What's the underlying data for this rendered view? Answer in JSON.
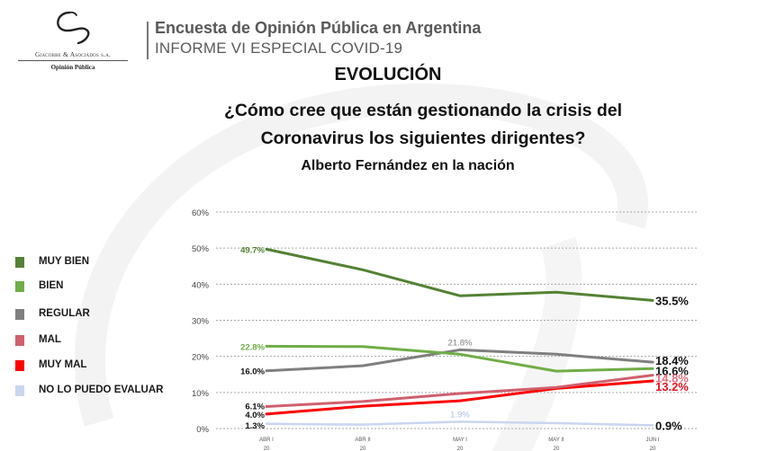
{
  "header": {
    "logo": {
      "icon": "giacobbe-logo-icon",
      "firm_name": "Giacobbe & Asociados s.a.",
      "tagline": "Opinión Pública"
    },
    "title": "Encuesta de Opinión Pública en Argentina",
    "subtitle": "INFORME VI ESPECIAL COVID-19"
  },
  "slide": {
    "heading": "EVOLUCIÓN",
    "question": "¿Cómo cree que están gestionando la crisis del Coronavirus los siguientes dirigentes?",
    "question_lines": [
      "¿Cómo cree que están gestionando la crisis del",
      "Coronavirus los siguientes dirigentes?"
    ],
    "chart_subtitle": "Alberto Fernández en la nación"
  },
  "legend": [
    {
      "label": "MUY BIEN",
      "color": "#548235"
    },
    {
      "label": "BIEN",
      "color": "#70AD47"
    },
    {
      "label": "REGULAR",
      "color": "#7F7F7F"
    },
    {
      "label": "MAL",
      "color": "#D0606E"
    },
    {
      "label": "MUY MAL",
      "color": "#FF0000"
    },
    {
      "label": "NO LO PUEDO EVALUAR",
      "color": "#C9D6F0"
    }
  ],
  "chart_data": {
    "type": "line",
    "title": "Alberto Fernández en la nación",
    "xlabel": "",
    "ylabel": "",
    "categories": [
      [
        "ABR I",
        "20"
      ],
      [
        "ABR II",
        "20"
      ],
      [
        "MAY I",
        "20"
      ],
      [
        "MAY II",
        "20"
      ],
      [
        "JUN I",
        "20"
      ]
    ],
    "ylim": [
      0,
      60
    ],
    "yticks": [
      "0%",
      "10%",
      "20%",
      "30%",
      "40%",
      "50%",
      "60%"
    ],
    "ytick_values": [
      0,
      10,
      20,
      30,
      40,
      50,
      60
    ],
    "grid": "horizontal-dotted",
    "legend_position": "left",
    "series": [
      {
        "name": "MUY BIEN",
        "color": "#548235",
        "values": [
          49.7,
          44.0,
          36.8,
          37.8,
          35.5
        ],
        "labels": [
          {
            "index": 0,
            "text": "49.7%",
            "color": "#548235",
            "style": "start"
          },
          {
            "index": 4,
            "text": "35.5%",
            "color": "#111111",
            "style": "end"
          }
        ]
      },
      {
        "name": "BIEN",
        "color": "#70AD47",
        "values": [
          22.8,
          22.7,
          20.6,
          15.9,
          16.6
        ],
        "labels": [
          {
            "index": 0,
            "text": "22.8%",
            "color": "#70AD47",
            "style": "start"
          },
          {
            "index": 4,
            "text": "16.6%",
            "color": "#111111",
            "style": "end"
          }
        ]
      },
      {
        "name": "REGULAR",
        "color": "#7F7F7F",
        "values": [
          16.0,
          17.4,
          21.8,
          20.6,
          18.4
        ],
        "labels": [
          {
            "index": 0,
            "text": "16.0%",
            "color": "#111111",
            "style": "start"
          },
          {
            "index": 2,
            "text": "21.8%",
            "color": "#7F7F7F",
            "style": "above"
          },
          {
            "index": 4,
            "text": "18.4%",
            "color": "#111111",
            "style": "end"
          }
        ]
      },
      {
        "name": "MAL",
        "color": "#D0606E",
        "values": [
          6.1,
          7.5,
          9.7,
          11.4,
          14.8
        ],
        "labels": [
          {
            "index": 0,
            "text": "6.1%",
            "color": "#111111",
            "style": "start"
          },
          {
            "index": 4,
            "text": "14.8%",
            "color": "#E0707E",
            "style": "end"
          }
        ]
      },
      {
        "name": "MUY MAL",
        "color": "#FF0000",
        "values": [
          4.0,
          6.2,
          7.7,
          11.1,
          13.2
        ],
        "labels": [
          {
            "index": 0,
            "text": "4.0%",
            "color": "#111111",
            "style": "start"
          },
          {
            "index": 4,
            "text": "13.2%",
            "color": "#E8141E",
            "style": "end"
          }
        ]
      },
      {
        "name": "NO LO PUEDO EVALUAR",
        "color": "#C9D6F0",
        "values": [
          1.3,
          1.1,
          1.9,
          1.5,
          0.9
        ],
        "labels": [
          {
            "index": 0,
            "text": "1.3%",
            "color": "#111111",
            "style": "start"
          },
          {
            "index": 2,
            "text": "1.9%",
            "color": "#A9BDE6",
            "style": "above"
          },
          {
            "index": 4,
            "text": "0.9%",
            "color": "#111111",
            "style": "end"
          }
        ]
      }
    ]
  }
}
